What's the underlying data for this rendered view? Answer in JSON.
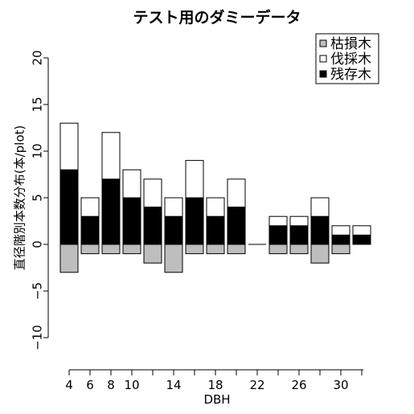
{
  "chart_data": {
    "type": "bar",
    "stacked": true,
    "title": "テスト用のダミーデータ",
    "xlabel": "DBH",
    "ylabel": "直径階別本数分布(本/plot)",
    "ylim": [
      -10,
      20
    ],
    "y_ticks": [
      -10,
      -5,
      0,
      5,
      10,
      15,
      20
    ],
    "x_ticks": [
      "4",
      "6",
      "8",
      "10",
      "14",
      "18",
      "22",
      "26",
      "30"
    ],
    "categories": [
      "4",
      "6",
      "8",
      "10",
      "12",
      "14",
      "16",
      "18",
      "20",
      "22",
      "24",
      "26",
      "28",
      "30",
      "32"
    ],
    "series": [
      {
        "name": "枯損木",
        "color": "#bebebe",
        "values": [
          -3,
          -1,
          -1,
          -1,
          -2,
          -3,
          -1,
          -1,
          -1,
          0,
          -1,
          -1,
          -2,
          -1,
          0
        ]
      },
      {
        "name": "伐採木",
        "color": "#ffffff",
        "values": [
          5,
          2,
          5,
          3,
          3,
          2,
          4,
          2,
          3,
          0,
          1,
          1,
          2,
          1,
          1
        ]
      },
      {
        "name": "残存木",
        "color": "#000000",
        "values": [
          8,
          3,
          7,
          5,
          4,
          3,
          5,
          3,
          4,
          0,
          2,
          2,
          3,
          1,
          1
        ]
      }
    ],
    "legend_position": "top-right",
    "grid": false
  }
}
